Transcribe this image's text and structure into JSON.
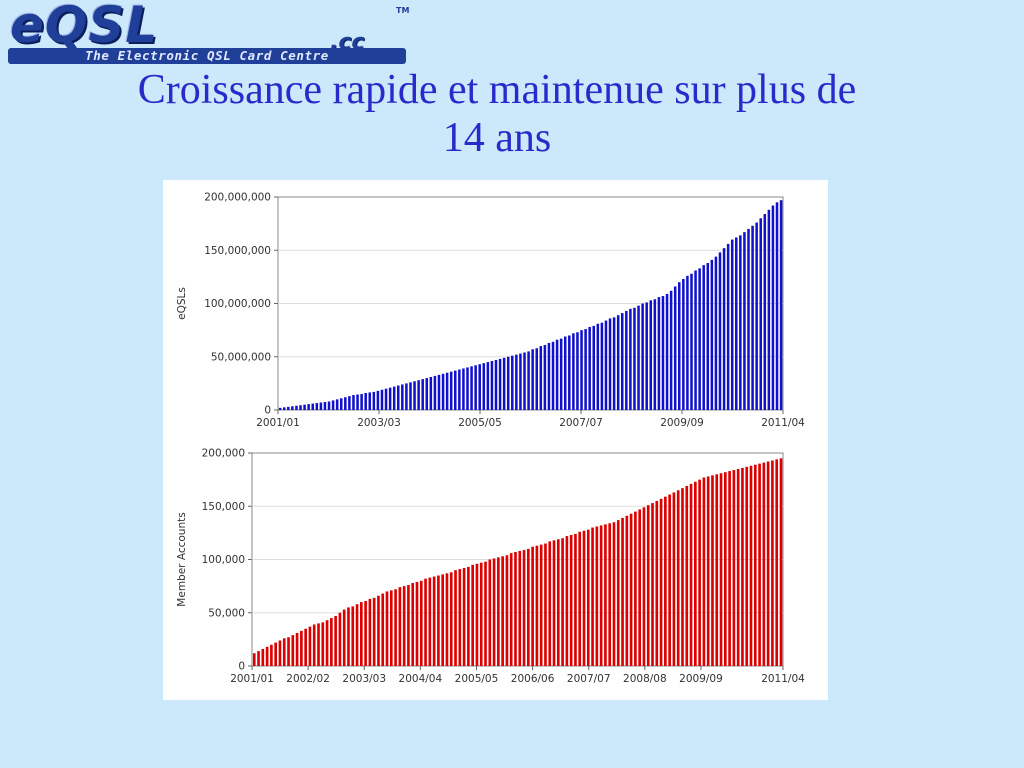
{
  "logo": {
    "main": "eQSL",
    "suffix": ".cc",
    "trademark": "TM",
    "tagline": "The Electronic QSL Card Centre",
    "colors": {
      "primary": "#1f3f99"
    }
  },
  "slide": {
    "title_line1": "Croissance rapide et maintenue sur plus de",
    "title_line2": "14 ans",
    "title_color": "#2a2acb",
    "background": "#cce8fb"
  },
  "chart_data": [
    {
      "type": "bar",
      "title": "",
      "ylabel": "eQSLs",
      "xlabel": "",
      "color": "#1111cc",
      "ylim": [
        0,
        200000000
      ],
      "grid": true,
      "y_ticks": [
        0,
        50000000,
        100000000,
        150000000,
        200000000
      ],
      "y_tick_labels": [
        "0",
        "50,000,000",
        "100,000,000",
        "150,000,000",
        "200,000,000"
      ],
      "x_tick_labels": [
        "2001/01",
        "2003/03",
        "2005/05",
        "2007/07",
        "2009/09",
        "2011/04"
      ],
      "bar_count": 124,
      "values_in_millions": [
        2,
        2.5,
        3,
        3.5,
        4,
        4.5,
        5,
        5.5,
        6,
        6.5,
        7,
        7.5,
        8,
        9,
        10,
        11,
        12,
        13,
        14,
        14.5,
        15,
        16,
        16.5,
        17,
        18,
        19,
        20,
        21,
        22,
        23,
        24,
        25,
        26,
        27,
        28,
        29,
        30,
        31,
        32,
        33,
        34,
        35,
        36,
        37,
        38,
        39,
        40,
        41,
        42,
        43,
        44,
        45,
        46,
        47,
        48,
        49,
        50,
        51,
        52,
        53,
        54,
        55,
        57,
        58,
        60,
        61,
        63,
        64,
        66,
        67,
        69,
        70,
        72,
        73,
        75,
        76,
        78,
        79,
        81,
        82,
        84,
        86,
        87,
        89,
        91,
        93,
        95,
        96,
        98,
        100,
        101,
        103,
        104,
        106,
        107,
        109,
        112,
        116,
        120,
        123,
        126,
        128,
        131,
        133,
        136,
        138,
        141,
        144,
        148,
        152,
        156,
        160,
        162,
        164,
        167,
        170,
        173,
        176,
        180,
        184,
        188,
        192,
        195,
        197
      ]
    },
    {
      "type": "bar",
      "title": "",
      "ylabel": "Member Accounts",
      "xlabel": "",
      "color": "#dd0000",
      "ylim": [
        0,
        200000
      ],
      "grid": true,
      "y_ticks": [
        0,
        50000,
        100000,
        150000,
        200000
      ],
      "y_tick_labels": [
        "0",
        "50,000",
        "100,000",
        "150,000",
        "200,000"
      ],
      "x_tick_labels": [
        "2001/01",
        "2002/02",
        "2003/03",
        "2004/04",
        "2005/05",
        "2006/06",
        "2007/07",
        "2008/08",
        "2009/09",
        "2011/04"
      ],
      "bar_count": 124,
      "values_in_thousands": [
        12,
        14,
        16,
        18,
        20,
        22,
        24,
        26,
        27,
        29,
        31,
        33,
        35,
        37,
        39,
        40,
        41,
        43,
        45,
        47,
        50,
        53,
        55,
        56,
        58,
        60,
        61,
        63,
        64,
        66,
        68,
        70,
        71,
        72,
        74,
        75,
        76,
        78,
        79,
        80,
        82,
        83,
        84,
        85,
        86,
        87,
        88,
        90,
        91,
        92,
        93,
        95,
        96,
        97,
        98,
        100,
        101,
        102,
        103,
        104,
        106,
        107,
        108,
        109,
        110,
        112,
        113,
        114,
        115,
        117,
        118,
        119,
        120,
        122,
        123,
        124,
        126,
        127,
        128,
        130,
        131,
        132,
        133,
        134,
        135,
        137,
        139,
        141,
        143,
        145,
        147,
        149,
        151,
        153,
        155,
        157,
        159,
        161,
        163,
        165,
        167,
        169,
        171,
        173,
        175,
        177,
        178,
        179,
        180,
        181,
        182,
        183,
        184,
        185,
        186,
        187,
        188,
        189,
        190,
        191,
        192,
        193,
        194,
        195
      ]
    }
  ]
}
